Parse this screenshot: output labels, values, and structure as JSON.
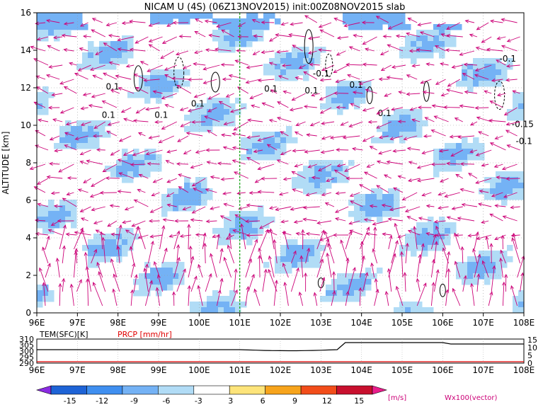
{
  "title": "NICAM U (4S) (06Z13NOV2015) init:00Z08NOV2015 slab",
  "chart_data": [
    {
      "type": "heatmap",
      "description_panel": "main",
      "ylabel": "ALTITUDE [km]",
      "xlim": [
        96,
        108
      ],
      "ylim": [
        0,
        16
      ],
      "x_ticks": [
        "96E",
        "97E",
        "98E",
        "99E",
        "100E",
        "101E",
        "102E",
        "103E",
        "104E",
        "105E",
        "106E",
        "107E",
        "108E"
      ],
      "y_ticks": [
        "0",
        "2",
        "4",
        "6",
        "8",
        "10",
        "12",
        "14",
        "16"
      ],
      "contour_labels": [
        "0.1",
        "0.1",
        "0.1",
        "0.1",
        "0.1",
        "-0.1",
        "0.1",
        "0.1",
        "-0.1",
        "0.1",
        "-0.15",
        "-0.1"
      ],
      "marker_line_x": 101,
      "vector_label": "Wx100(vector)",
      "vector_color": "#cc0077",
      "grid": true
    },
    {
      "type": "line",
      "description_panel": "surface",
      "xlim": [
        96,
        108
      ],
      "series": [
        {
          "name": "TEM(SFC)[K]",
          "color": "#000000",
          "y_ticks_left": [
            "290",
            "295",
            "300",
            "305",
            "310"
          ]
        },
        {
          "name": "PRCP [mm/hr]",
          "color": "#e00000",
          "y_ticks_right": [
            "0",
            "5",
            "10",
            "15"
          ]
        }
      ],
      "x_ticks": [
        "96E",
        "97E",
        "98E",
        "99E",
        "100E",
        "101E",
        "102E",
        "103E",
        "104E",
        "105E",
        "106E",
        "107E",
        "108E"
      ]
    }
  ],
  "colorbar": {
    "labels": [
      "-15",
      "-12",
      "-9",
      "-6",
      "-3",
      "3",
      "6",
      "9",
      "12",
      "15"
    ],
    "unit": "[m/s]",
    "colors": [
      "#8a2be2",
      "#1e63d6",
      "#3f8ff0",
      "#74b2f5",
      "#b1dcf6",
      "#ffffff",
      "#fde47a",
      "#f7a41c",
      "#f24d1a",
      "#c8102e",
      "#e91e8c"
    ]
  }
}
